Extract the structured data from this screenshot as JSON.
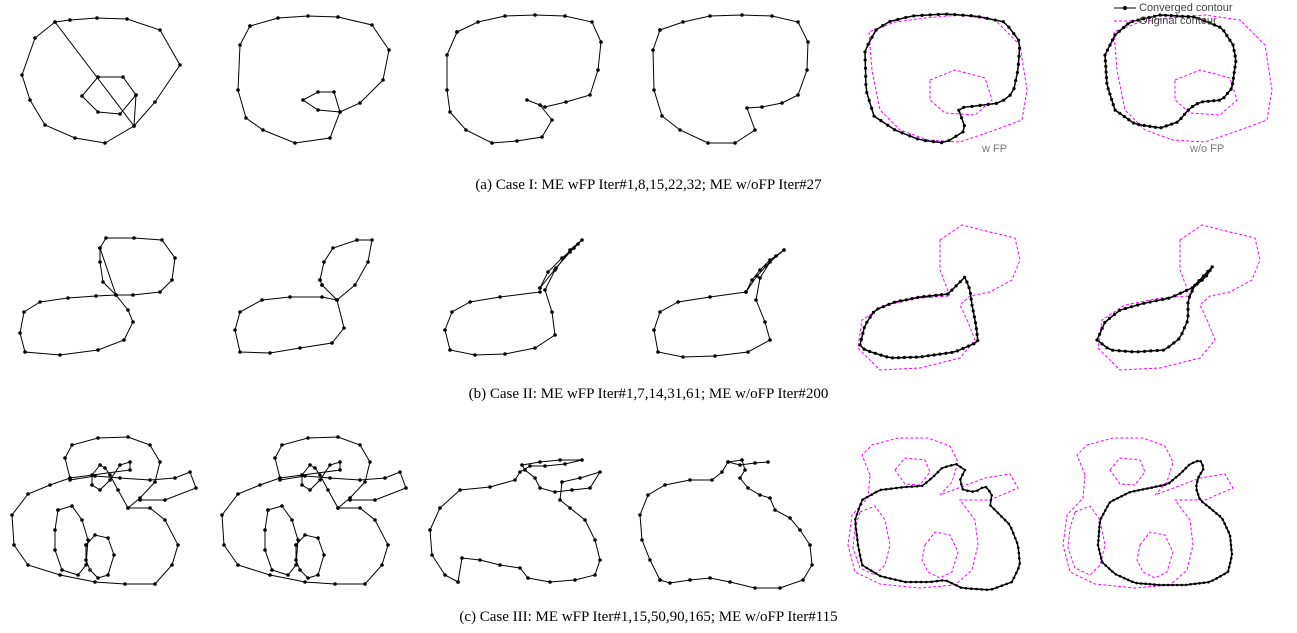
{
  "figure": {
    "rows": [
      {
        "caption": "(a) Case I: ME wFP Iter#1,8,15,22,32; ME w/oFP Iter#27",
        "panel_tags": [
          "w FP",
          "w/o FP"
        ]
      },
      {
        "caption": "(b) Case II: ME wFP Iter#1,7,14,31,61; ME w/oFP Iter#200"
      },
      {
        "caption": "(c) Case III: ME wFP Iter#1,15,50,90,165; ME w/oFP Iter#115"
      }
    ],
    "legend": {
      "items": [
        {
          "label": "Converged contour",
          "style": "solid-with-dots"
        },
        {
          "label": "Original contour",
          "style": "dashed-magenta"
        }
      ]
    },
    "colors": {
      "contour": "#000000",
      "original_contour": "#ff00ff",
      "panel_tag": "#777777"
    }
  }
}
